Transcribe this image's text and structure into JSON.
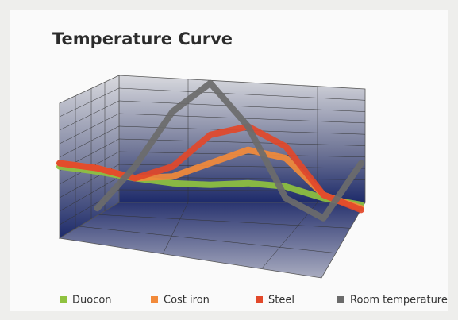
{
  "chart_data": {
    "type": "line",
    "title": "Temperature Curve",
    "categories": [
      null,
      null,
      null,
      null,
      null,
      null,
      null,
      null,
      null
    ],
    "ylim": [
      0,
      100
    ],
    "series": [
      {
        "name": "Duocon",
        "color": "#8fc23f",
        "values": [
          43,
          40,
          36,
          33,
          32,
          33,
          31,
          24,
          20
        ]
      },
      {
        "name": "Cost iron",
        "color": "#f28a3a",
        "values": [
          45,
          42,
          36,
          37,
          45,
          53,
          48,
          26,
          18
        ]
      },
      {
        "name": "Steel",
        "color": "#e2482a",
        "values": [
          45,
          42,
          36,
          43,
          62,
          67,
          55,
          26,
          17
        ]
      },
      {
        "name": "Room temperature",
        "color": "#6b6b6b",
        "values": [
          null,
          18,
          43,
          76,
          93,
          67,
          24,
          12,
          45
        ]
      }
    ]
  }
}
